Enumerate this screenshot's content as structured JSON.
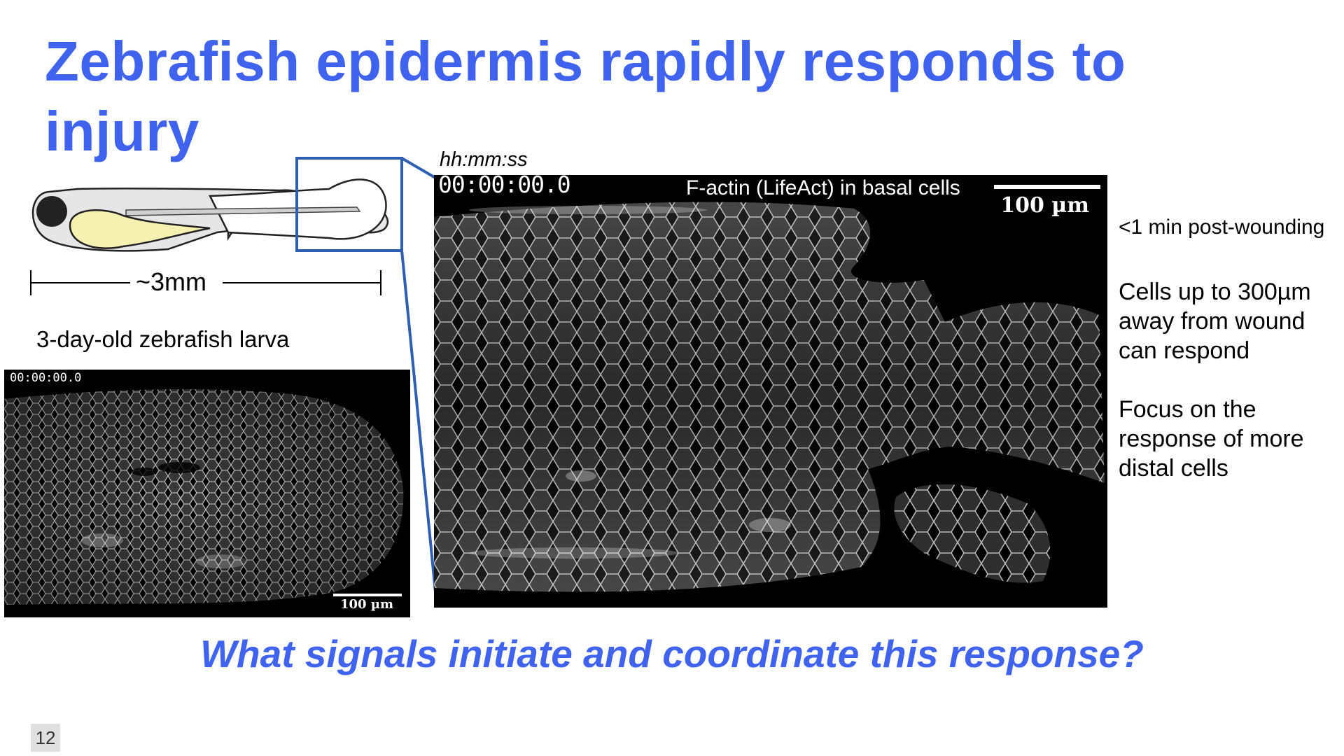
{
  "slide": {
    "title": "Zebrafish epidermis rapidly responds to injury",
    "diagram": {
      "length_label": "~3mm",
      "caption": "3-day-old zebrafish larva"
    },
    "small_image": {
      "timestamp": "00:00:00.0",
      "scale_label": "100 µm"
    },
    "large_image": {
      "time_format": "hh:mm:ss",
      "timestamp": "00:00:00.0",
      "stain_label": "F-actin (LifeAct) in basal cells",
      "scale_label": "100 µm"
    },
    "notes": [
      "<1 min post-wounding",
      "Cells up to 300µm away from wound can respond",
      "Focus on the response of more distal cells"
    ],
    "question": "What signals initiate and coordinate this response?",
    "page_number": "12",
    "colors": {
      "accent": "#3f63ee",
      "callout": "#2f5fb3",
      "yolk": "#f6f1b0",
      "larva_fill": "#e6e6e6"
    }
  }
}
